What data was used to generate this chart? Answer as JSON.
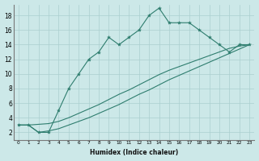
{
  "xlabel": "Humidex (Indice chaleur)",
  "bg_color": "#cce8e8",
  "line_color": "#2e7d6e",
  "xlim": [
    -0.5,
    23.5
  ],
  "ylim": [
    1,
    19.5
  ],
  "yticks": [
    2,
    4,
    6,
    8,
    10,
    12,
    14,
    16,
    18
  ],
  "xticks": [
    0,
    1,
    2,
    3,
    4,
    5,
    6,
    7,
    8,
    9,
    10,
    11,
    12,
    13,
    14,
    15,
    16,
    17,
    18,
    19,
    20,
    21,
    22,
    23
  ],
  "series1_x": [
    0,
    1,
    2,
    3,
    4,
    5,
    6,
    7,
    8,
    9,
    10,
    11,
    12,
    13,
    14,
    15,
    16,
    17,
    18,
    19,
    20,
    21,
    22,
    23
  ],
  "series1_y": [
    3,
    3,
    2,
    2,
    5,
    8,
    10,
    12,
    13,
    15,
    14,
    15,
    16,
    18,
    19,
    17,
    17,
    17,
    16,
    15,
    14,
    13,
    14,
    14
  ],
  "series2_x": [
    0,
    23
  ],
  "series2_y": [
    3,
    14
  ],
  "series3_x": [
    0,
    23
  ],
  "series3_y": [
    3,
    14
  ],
  "series2_full_x": [
    0,
    1,
    2,
    3,
    4,
    5,
    6,
    7,
    8,
    9,
    10,
    11,
    12,
    13,
    14,
    15,
    16,
    17,
    18,
    19,
    20,
    21,
    22,
    23
  ],
  "series2_full_y": [
    3,
    3.0,
    3.1,
    3.2,
    3.5,
    4.0,
    4.6,
    5.2,
    5.8,
    6.5,
    7.2,
    7.8,
    8.5,
    9.2,
    9.9,
    10.5,
    11.0,
    11.5,
    12.0,
    12.5,
    13.0,
    13.5,
    13.8,
    14.0
  ],
  "series3_full_x": [
    0,
    1,
    2,
    3,
    4,
    5,
    6,
    7,
    8,
    9,
    10,
    11,
    12,
    13,
    14,
    15,
    16,
    17,
    18,
    19,
    20,
    21,
    22,
    23
  ],
  "series3_full_y": [
    3,
    3.0,
    2.0,
    2.2,
    2.5,
    3.0,
    3.5,
    4.0,
    4.6,
    5.2,
    5.8,
    6.5,
    7.2,
    7.8,
    8.5,
    9.2,
    9.8,
    10.4,
    11.0,
    11.6,
    12.2,
    12.8,
    13.4,
    14.0
  ]
}
